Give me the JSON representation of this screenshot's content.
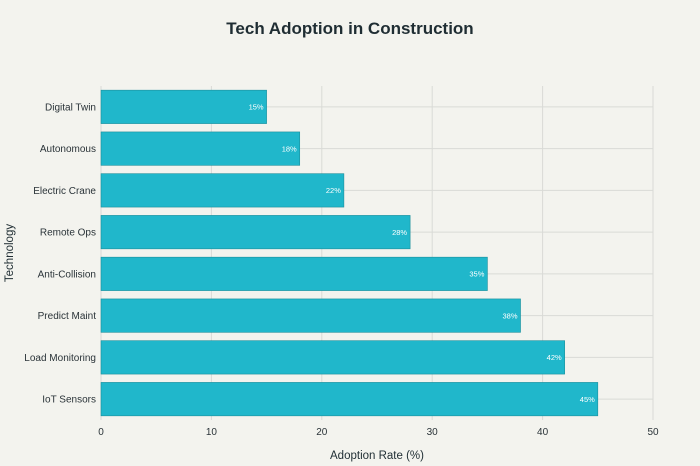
{
  "chart_data": {
    "type": "bar",
    "orientation": "horizontal",
    "title": "Tech Adoption in Construction",
    "xlabel": "Adoption Rate (%)",
    "ylabel": "Technology",
    "categories": [
      "Digital Twin",
      "Autonomous",
      "Electric Crane",
      "Remote Ops",
      "Anti-Collision",
      "Predict Maint",
      "Load Monitoring",
      "IoT Sensors"
    ],
    "values": [
      15,
      18,
      22,
      28,
      35,
      38,
      42,
      45
    ],
    "data_labels": [
      "15%",
      "18%",
      "22%",
      "28%",
      "35%",
      "38%",
      "42%",
      "45%"
    ],
    "xlim": [
      0,
      50
    ],
    "xticks": [
      0,
      10,
      20,
      30,
      40,
      50
    ],
    "xtick_labels": [
      "0",
      "10",
      "20",
      "30",
      "40",
      "50"
    ],
    "grid": true,
    "legend": "none",
    "colors": {
      "bar": "#20b7cb",
      "background": "#f3f3ee",
      "grid": "#d9dad6",
      "text": "#1f2d33"
    }
  }
}
